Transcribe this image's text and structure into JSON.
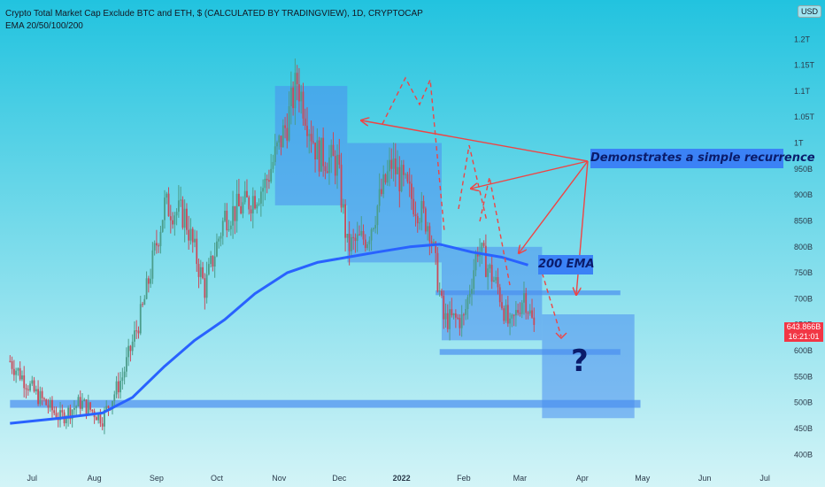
{
  "header": {
    "title": "Crypto Total Market Cap Exclude BTC and ETH, $ (CALCULATED BY TRADINGVIEW), 1D, CRYPTOCAP",
    "indicator": "EMA 20/50/100/200",
    "currency": "USD"
  },
  "price_tag": {
    "price": "643.866B",
    "countdown": "16:21:01"
  },
  "annotations": {
    "recurrence": "Demonstrates a simple recurrence",
    "ema": "200 EMA",
    "question": "?"
  },
  "colors": {
    "bg_top": "#22c3df",
    "bg_bottom": "#cff3f7",
    "ema": "#2962ff",
    "candle_up": "#4b9d8a",
    "candle_down": "#c94a5a",
    "box": "#4a8ef0",
    "arrow": "#ef4444",
    "price_tag": "#f23645"
  },
  "chart_data": {
    "type": "candlestick",
    "title": "Crypto Total Market Cap Exclude BTC and ETH, $ (CALCULATED BY TRADINGVIEW), 1D, CRYPTOCAP",
    "x_ticks": [
      "Jul",
      "Aug",
      "Sep",
      "Oct",
      "Nov",
      "Dec",
      "2022",
      "Feb",
      "Mar",
      "Apr",
      "May",
      "Jun",
      "Jul"
    ],
    "y_ticks": [
      "400B",
      "450B",
      "500B",
      "550B",
      "600B",
      "650B",
      "700B",
      "750B",
      "800B",
      "850B",
      "900B",
      "950B",
      "1T",
      "1.05T",
      "1.1T",
      "1.15T",
      "1.2T"
    ],
    "ylim": [
      380,
      1250
    ],
    "y_unit": "B",
    "last_close": 643.866,
    "series": [
      {
        "name": "EMA 20/50/100/200",
        "type": "line",
        "points": [
          [
            "2021-06-20",
            460
          ],
          [
            "2021-07-15",
            470
          ],
          [
            "2021-08-05",
            480
          ],
          [
            "2021-08-20",
            510
          ],
          [
            "2021-09-05",
            570
          ],
          [
            "2021-09-20",
            620
          ],
          [
            "2021-10-05",
            660
          ],
          [
            "2021-10-20",
            710
          ],
          [
            "2021-11-05",
            750
          ],
          [
            "2021-11-20",
            770
          ],
          [
            "2021-12-05",
            780
          ],
          [
            "2021-12-20",
            790
          ],
          [
            "2022-01-05",
            800
          ],
          [
            "2022-01-20",
            805
          ],
          [
            "2022-02-05",
            790
          ],
          [
            "2022-02-20",
            780
          ],
          [
            "2022-03-05",
            765
          ]
        ]
      }
    ],
    "price_path": [
      [
        "2021-06-20",
        580
      ],
      [
        "2021-07-02",
        520
      ],
      [
        "2021-07-15",
        470
      ],
      [
        "2021-07-25",
        500
      ],
      [
        "2021-08-05",
        470
      ],
      [
        "2021-08-15",
        550
      ],
      [
        "2021-08-25",
        680
      ],
      [
        "2021-09-05",
        880
      ],
      [
        "2021-09-15",
        860
      ],
      [
        "2021-09-25",
        720
      ],
      [
        "2021-10-05",
        860
      ],
      [
        "2021-10-15",
        880
      ],
      [
        "2021-10-25",
        920
      ],
      [
        "2021-11-05",
        1040
      ],
      [
        "2021-11-10",
        1120
      ],
      [
        "2021-11-20",
        980
      ],
      [
        "2021-11-30",
        960
      ],
      [
        "2021-12-05",
        800
      ],
      [
        "2021-12-15",
        820
      ],
      [
        "2021-12-27",
        960
      ],
      [
        "2022-01-05",
        900
      ],
      [
        "2022-01-15",
        840
      ],
      [
        "2022-01-22",
        660
      ],
      [
        "2022-02-01",
        660
      ],
      [
        "2022-02-08",
        800
      ],
      [
        "2022-02-18",
        720
      ],
      [
        "2022-02-24",
        640
      ],
      [
        "2022-03-03",
        710
      ],
      [
        "2022-03-08",
        643.866
      ]
    ],
    "zones": [
      {
        "x": [
          "2021-10-30",
          "2021-12-05"
        ],
        "y": [
          880,
          1110
        ]
      },
      {
        "x": [
          "2021-12-05",
          "2022-01-21"
        ],
        "y": [
          770,
          1000
        ]
      },
      {
        "x": [
          "2022-01-21",
          "2022-03-12"
        ],
        "y": [
          620,
          800
        ]
      },
      {
        "x": [
          "2022-03-12",
          "2022-04-27"
        ],
        "y": [
          470,
          670
        ]
      }
    ],
    "levels": [
      {
        "x": [
          "2021-06-20",
          "2022-04-30"
        ],
        "y": [
          490,
          505
        ]
      },
      {
        "x": [
          "2022-01-18",
          "2022-04-20"
        ],
        "y": [
          707,
          716
        ]
      },
      {
        "x": [
          "2022-01-20",
          "2022-04-20"
        ],
        "y": [
          592,
          603
        ]
      }
    ]
  }
}
